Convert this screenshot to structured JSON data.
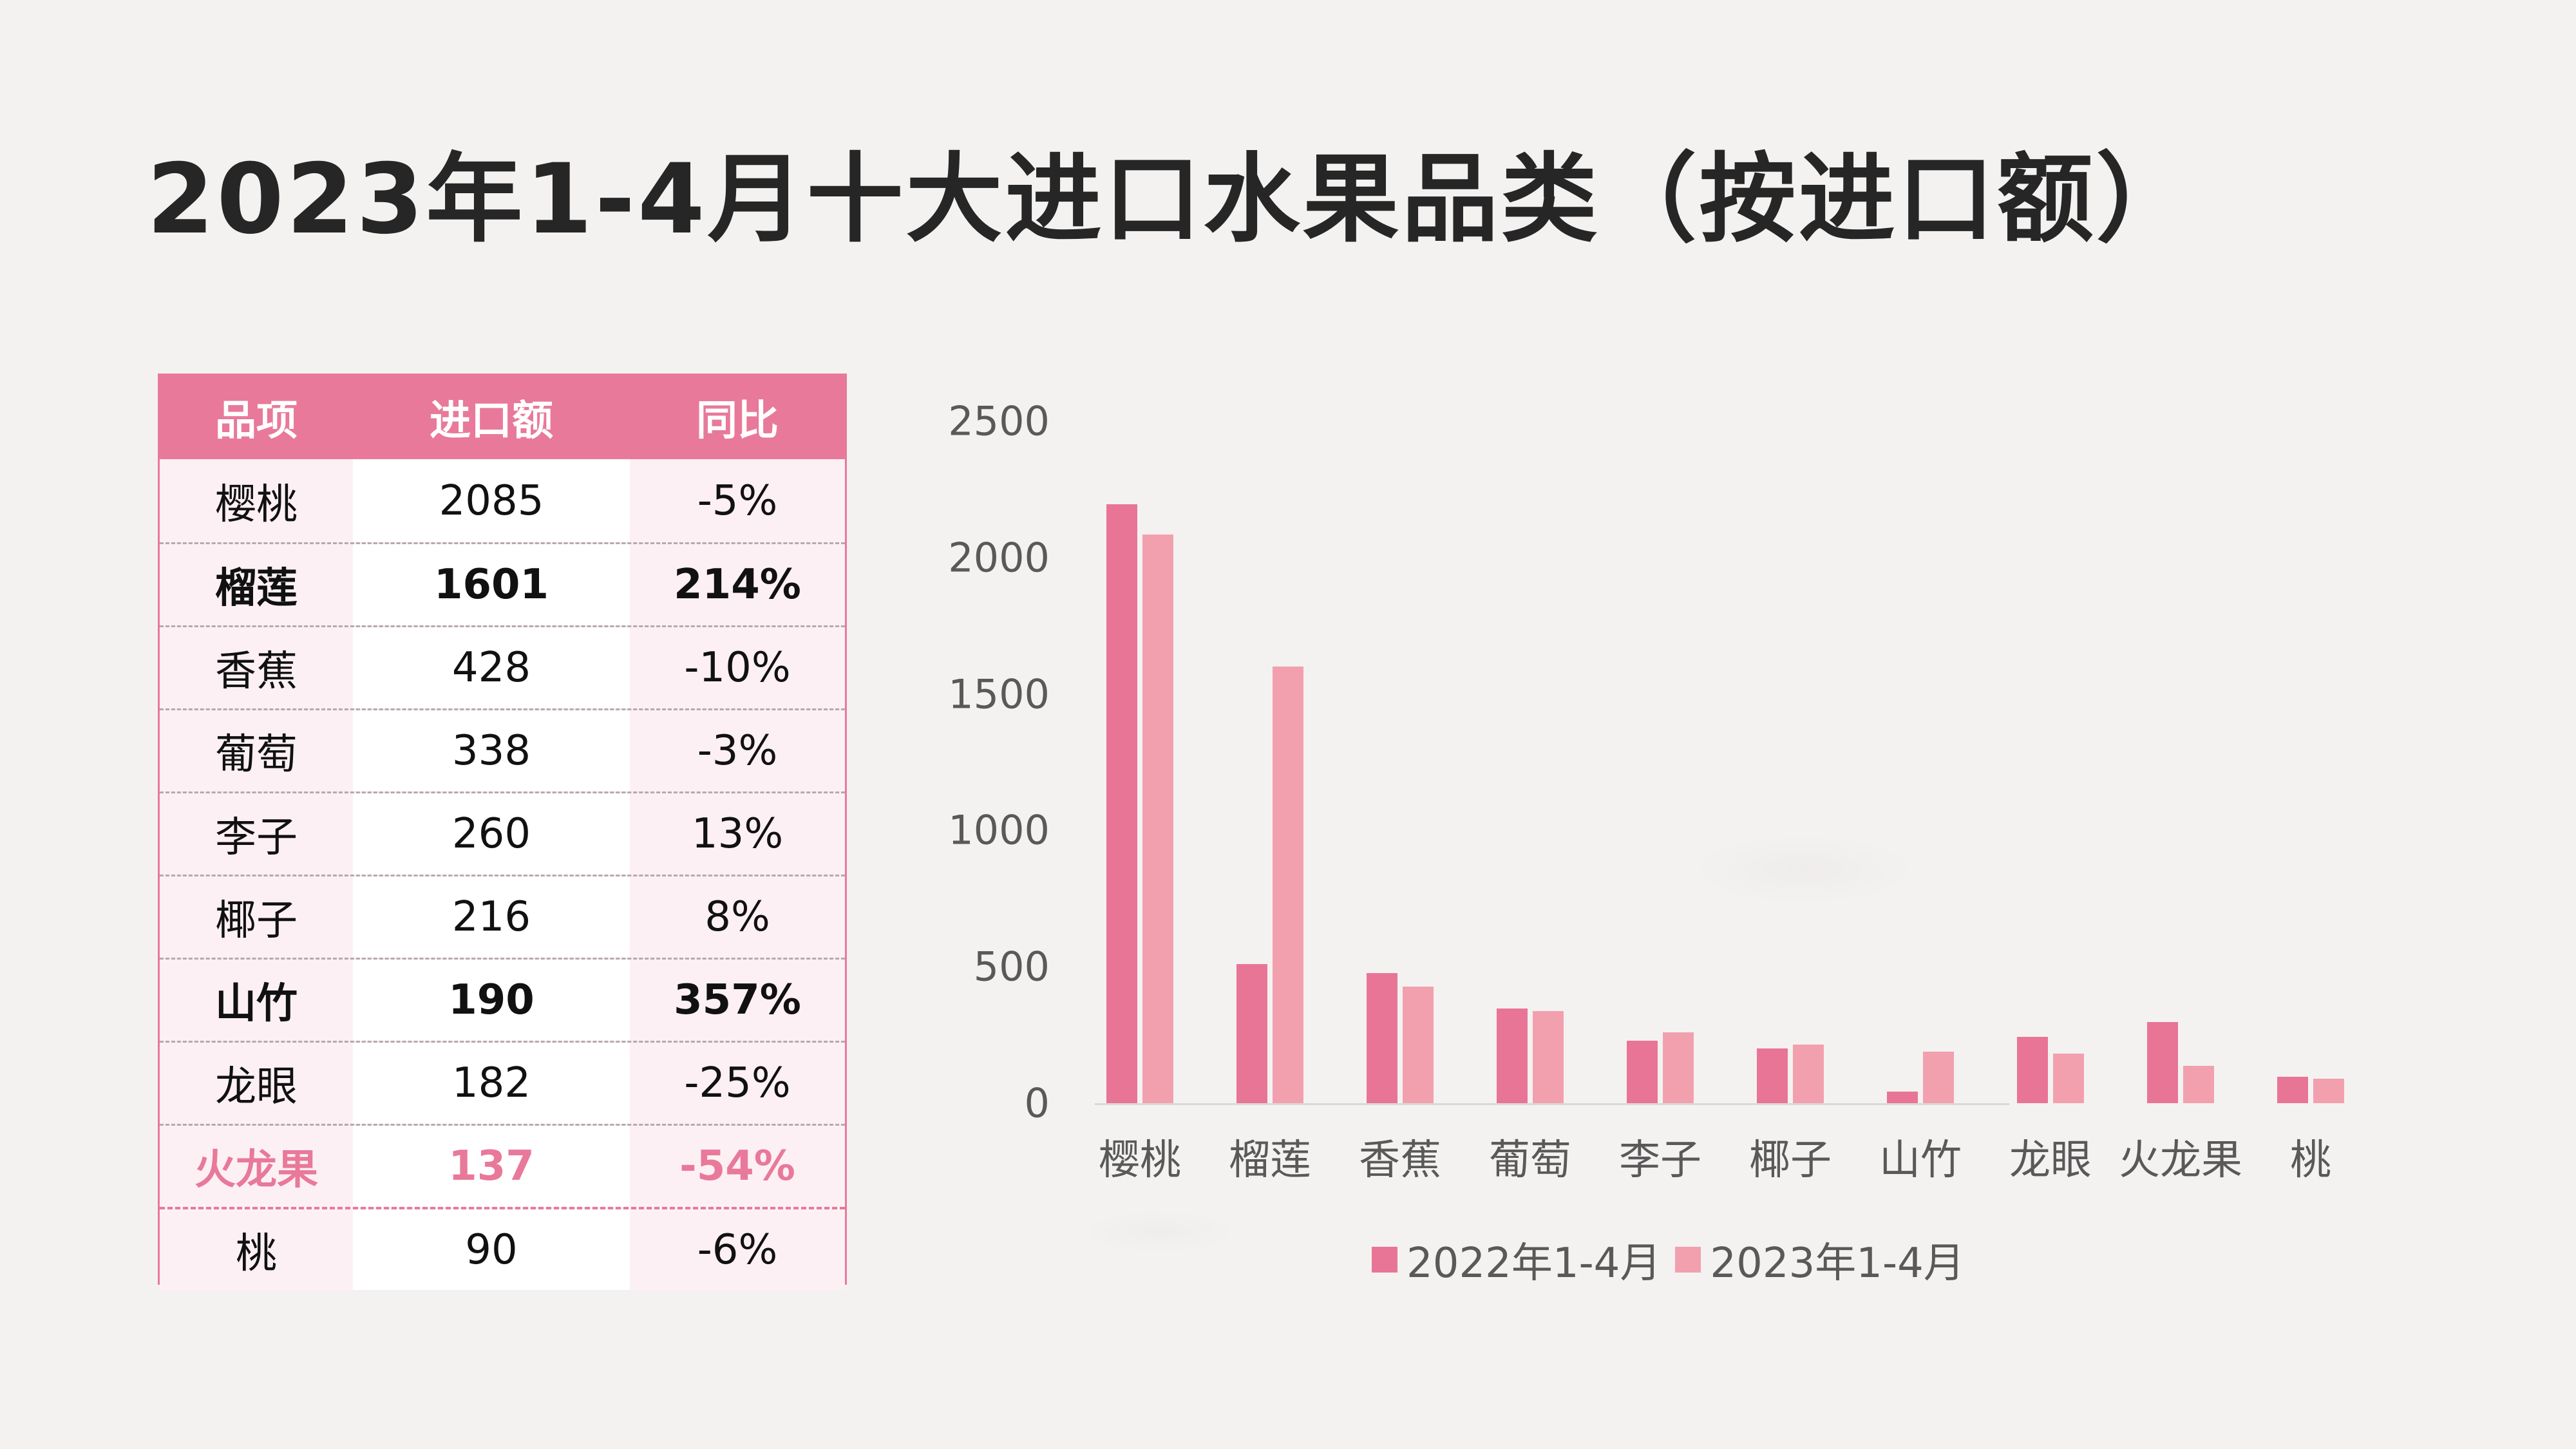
{
  "title": "2023年1-4月十大进口水果品类（按进口额）",
  "colors": {
    "accent": "#e8799a",
    "series_2022": "#e87596",
    "series_2023": "#f2a0ae",
    "text_dark": "#262626",
    "axis_text": "#595959"
  },
  "table": {
    "headers": [
      "品项",
      "进口额",
      "同比"
    ],
    "rows": [
      {
        "item": "樱桃",
        "value": "2085",
        "yoy": "-5%",
        "style": "normal"
      },
      {
        "item": "榴莲",
        "value": "1601",
        "yoy": "214%",
        "style": "bold"
      },
      {
        "item": "香蕉",
        "value": "428",
        "yoy": "-10%",
        "style": "normal"
      },
      {
        "item": "葡萄",
        "value": "338",
        "yoy": "-3%",
        "style": "normal"
      },
      {
        "item": "李子",
        "value": "260",
        "yoy": "13%",
        "style": "normal"
      },
      {
        "item": "椰子",
        "value": "216",
        "yoy": "8%",
        "style": "normal"
      },
      {
        "item": "山竹",
        "value": "190",
        "yoy": "357%",
        "style": "bold"
      },
      {
        "item": "龙眼",
        "value": "182",
        "yoy": "-25%",
        "style": "normal"
      },
      {
        "item": "火龙果",
        "value": "137",
        "yoy": "-54%",
        "style": "highlight"
      },
      {
        "item": "桃",
        "value": "90",
        "yoy": "-6%",
        "style": "normal"
      }
    ]
  },
  "chart_data": {
    "type": "bar",
    "title": "",
    "xlabel": "",
    "ylabel": "",
    "ylim": [
      0,
      2500
    ],
    "yticks": [
      "2500",
      "2000",
      "1500",
      "1000",
      "500",
      "0"
    ],
    "grid": false,
    "legend_position": "bottom",
    "categories": [
      "樱桃",
      "榴莲",
      "香蕉",
      "葡萄",
      "李子",
      "椰子",
      "山竹",
      "龙眼",
      "火龙果",
      "桃"
    ],
    "series": [
      {
        "name": "2022年1-4月",
        "values": [
          2195,
          510,
          476,
          348,
          230,
          200,
          42,
          243,
          298,
          96
        ]
      },
      {
        "name": "2023年1-4月",
        "values": [
          2085,
          1601,
          428,
          338,
          260,
          216,
          190,
          182,
          137,
          90
        ]
      }
    ]
  }
}
